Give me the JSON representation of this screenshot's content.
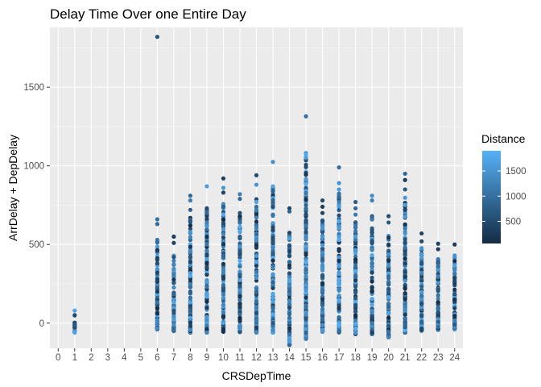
{
  "chart_data": {
    "type": "scatter",
    "title": "Delay Time Over one Entire Day",
    "xlabel": "CRSDepTime",
    "ylabel": "ArrDelay + DepDelay",
    "xlim": [
      -0.5,
      24.5
    ],
    "ylim": [
      -160,
      1880
    ],
    "x_ticks": [
      0,
      1,
      2,
      3,
      4,
      5,
      6,
      7,
      8,
      9,
      10,
      11,
      12,
      13,
      14,
      15,
      16,
      17,
      18,
      19,
      20,
      21,
      22,
      23,
      24
    ],
    "y_ticks": [
      0,
      500,
      1000,
      1500
    ],
    "grid": true,
    "legend": {
      "title": "Distance",
      "position": "right",
      "type": "colorbar",
      "ticks": [
        500,
        1000,
        1500
      ],
      "range": [
        60,
        1900
      ],
      "color_low": "#132B43",
      "color_high": "#56B1F7"
    },
    "columns": [
      {
        "x": 1,
        "min": -60,
        "max": 80
      },
      {
        "x": 6,
        "min": -40,
        "max": 660
      },
      {
        "x": 7,
        "min": -50,
        "max": 550
      },
      {
        "x": 8,
        "min": -60,
        "max": 810
      },
      {
        "x": 9,
        "min": -60,
        "max": 870
      },
      {
        "x": 10,
        "min": -55,
        "max": 920
      },
      {
        "x": 11,
        "min": -60,
        "max": 820
      },
      {
        "x": 12,
        "min": -60,
        "max": 940
      },
      {
        "x": 13,
        "min": -60,
        "max": 1025
      },
      {
        "x": 14,
        "min": -140,
        "max": 730
      },
      {
        "x": 15,
        "min": -100,
        "max": 1315
      },
      {
        "x": 16,
        "min": -55,
        "max": 780
      },
      {
        "x": 17,
        "min": -60,
        "max": 990
      },
      {
        "x": 18,
        "min": -70,
        "max": 770
      },
      {
        "x": 19,
        "min": -70,
        "max": 810
      },
      {
        "x": 20,
        "min": -90,
        "max": 680
      },
      {
        "x": 21,
        "min": -60,
        "max": 950
      },
      {
        "x": 22,
        "min": -50,
        "max": 570
      },
      {
        "x": 23,
        "min": -45,
        "max": 505
      },
      {
        "x": 24,
        "min": -40,
        "max": 500
      }
    ],
    "points": [
      {
        "x": 1,
        "y": 80,
        "distance": 1700
      },
      {
        "x": 1,
        "y": -60,
        "distance": 1700
      },
      {
        "x": 6,
        "y": 1820,
        "distance": 600
      },
      {
        "x": 6,
        "y": 660,
        "distance": 1000
      },
      {
        "x": 6,
        "y": 630,
        "distance": 900
      },
      {
        "x": 6,
        "y": 380,
        "distance": 500
      },
      {
        "x": 6,
        "y": 320,
        "distance": 400
      },
      {
        "x": 6,
        "y": 200,
        "distance": 300
      },
      {
        "x": 7,
        "y": 550,
        "distance": 300
      },
      {
        "x": 7,
        "y": 510,
        "distance": 400
      },
      {
        "x": 7,
        "y": 420,
        "distance": 600
      },
      {
        "x": 8,
        "y": 810,
        "distance": 900
      },
      {
        "x": 8,
        "y": 780,
        "distance": 1200
      },
      {
        "x": 8,
        "y": 720,
        "distance": 800
      },
      {
        "x": 8,
        "y": 650,
        "distance": 700
      },
      {
        "x": 8,
        "y": 580,
        "distance": 1500
      },
      {
        "x": 9,
        "y": 870,
        "distance": 1600
      },
      {
        "x": 9,
        "y": 730,
        "distance": 500
      },
      {
        "x": 9,
        "y": 700,
        "distance": 900
      },
      {
        "x": 9,
        "y": 640,
        "distance": 1200
      },
      {
        "x": 10,
        "y": 920,
        "distance": 300
      },
      {
        "x": 10,
        "y": 860,
        "distance": 1500
      },
      {
        "x": 10,
        "y": 830,
        "distance": 400
      },
      {
        "x": 10,
        "y": 740,
        "distance": 800
      },
      {
        "x": 11,
        "y": 820,
        "distance": 1200
      },
      {
        "x": 11,
        "y": 790,
        "distance": 900
      },
      {
        "x": 11,
        "y": 700,
        "distance": 600
      },
      {
        "x": 12,
        "y": 940,
        "distance": 500
      },
      {
        "x": 12,
        "y": 880,
        "distance": 1500
      },
      {
        "x": 12,
        "y": 770,
        "distance": 1700
      },
      {
        "x": 12,
        "y": 740,
        "distance": 1000
      },
      {
        "x": 12,
        "y": 670,
        "distance": 1300
      },
      {
        "x": 13,
        "y": 1025,
        "distance": 1400
      },
      {
        "x": 13,
        "y": 870,
        "distance": 1700
      },
      {
        "x": 13,
        "y": 780,
        "distance": 900
      },
      {
        "x": 13,
        "y": 740,
        "distance": 600
      },
      {
        "x": 14,
        "y": 730,
        "distance": 400
      },
      {
        "x": 14,
        "y": 710,
        "distance": 800
      },
      {
        "x": 14,
        "y": -140,
        "distance": 900
      },
      {
        "x": 15,
        "y": 1315,
        "distance": 1000
      },
      {
        "x": 15,
        "y": 650,
        "distance": 600
      },
      {
        "x": 15,
        "y": 620,
        "distance": 1100
      },
      {
        "x": 15,
        "y": -100,
        "distance": 1200
      },
      {
        "x": 16,
        "y": 780,
        "distance": 500
      },
      {
        "x": 16,
        "y": 740,
        "distance": 300
      },
      {
        "x": 16,
        "y": 700,
        "distance": 400
      },
      {
        "x": 16,
        "y": 650,
        "distance": 600
      },
      {
        "x": 17,
        "y": 990,
        "distance": 1000
      },
      {
        "x": 17,
        "y": 890,
        "distance": 1500
      },
      {
        "x": 17,
        "y": 850,
        "distance": 1600
      },
      {
        "x": 17,
        "y": 800,
        "distance": 900
      },
      {
        "x": 17,
        "y": 770,
        "distance": 1200
      },
      {
        "x": 18,
        "y": 770,
        "distance": 700
      },
      {
        "x": 18,
        "y": 730,
        "distance": 900
      },
      {
        "x": 18,
        "y": 690,
        "distance": 1100
      },
      {
        "x": 19,
        "y": 810,
        "distance": 1400
      },
      {
        "x": 19,
        "y": 780,
        "distance": 1200
      },
      {
        "x": 19,
        "y": 680,
        "distance": 800
      },
      {
        "x": 20,
        "y": 680,
        "distance": 500
      },
      {
        "x": 20,
        "y": 640,
        "distance": 700
      },
      {
        "x": 20,
        "y": -90,
        "distance": 1300
      },
      {
        "x": 21,
        "y": 950,
        "distance": 900
      },
      {
        "x": 21,
        "y": 910,
        "distance": 300
      },
      {
        "x": 21,
        "y": 850,
        "distance": 700
      },
      {
        "x": 21,
        "y": 720,
        "distance": 400
      },
      {
        "x": 22,
        "y": 570,
        "distance": 400
      },
      {
        "x": 22,
        "y": 520,
        "distance": 500
      },
      {
        "x": 23,
        "y": 505,
        "distance": 400
      },
      {
        "x": 23,
        "y": 470,
        "distance": 300
      },
      {
        "x": 24,
        "y": 500,
        "distance": 300
      },
      {
        "x": 24,
        "y": 430,
        "distance": 1500
      },
      {
        "x": 24,
        "y": 340,
        "distance": 1300
      },
      {
        "x": 24,
        "y": 290,
        "distance": 400
      }
    ]
  }
}
